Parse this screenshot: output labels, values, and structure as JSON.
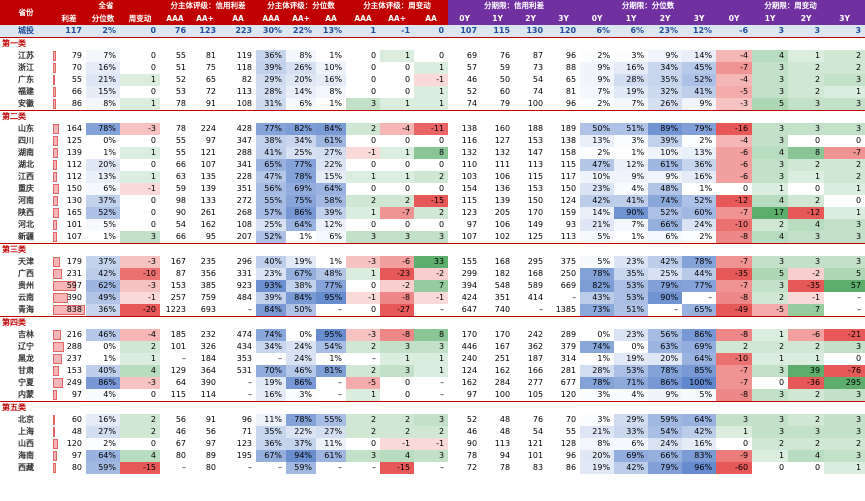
{
  "header": {
    "top": [
      "省份",
      "全省",
      "分主体评级：信用利差",
      "分主体评级：分位数",
      "分主体评级：周变动",
      "分期限：信用利差",
      "分期限：分位数",
      "分期限：周变动"
    ],
    "sub": [
      "利差",
      "分位数",
      "周变动",
      "AAA",
      "AA+",
      "AA",
      "AAA",
      "AA+",
      "AA",
      "AAA",
      "AA+",
      "AA",
      "0Y",
      "1Y",
      "2Y",
      "3Y",
      "0Y",
      "1Y",
      "2Y",
      "3Y",
      "0Y",
      "1Y",
      "2Y",
      "3Y"
    ]
  },
  "total": {
    "province": "城投",
    "cells": [
      "117",
      "2%",
      "0",
      "76",
      "123",
      "223",
      "30%",
      "22%",
      "13%",
      "1",
      "-1",
      "0",
      "107",
      "115",
      "130",
      "120",
      "6%",
      "6%",
      "23%",
      "12%",
      "-6",
      "3",
      "3",
      "3"
    ]
  },
  "groups": [
    {
      "title": "第一类",
      "rows": [
        {
          "province": "江苏",
          "cells": [
            "79",
            "7%",
            "0",
            "55",
            "81",
            "119",
            "36%",
            "8%",
            "1%",
            "0",
            "1",
            "0",
            "69",
            "76",
            "87",
            "96",
            "2%",
            "3%",
            "9%",
            "14%",
            "-4",
            "4",
            "1",
            "2"
          ]
        },
        {
          "province": "浙江",
          "cells": [
            "70",
            "16%",
            "0",
            "51",
            "75",
            "118",
            "39%",
            "26%",
            "10%",
            "0",
            "0",
            "1",
            "57",
            "59",
            "73",
            "88",
            "9%",
            "16%",
            "34%",
            "45%",
            "-7",
            "3",
            "2",
            "2"
          ]
        },
        {
          "province": "广东",
          "cells": [
            "55",
            "21%",
            "1",
            "52",
            "65",
            "82",
            "29%",
            "20%",
            "16%",
            "0",
            "0",
            "-1",
            "46",
            "50",
            "54",
            "65",
            "9%",
            "28%",
            "35%",
            "52%",
            "-4",
            "3",
            "2",
            "3"
          ]
        },
        {
          "province": "福建",
          "cells": [
            "66",
            "15%",
            "0",
            "53",
            "72",
            "113",
            "28%",
            "14%",
            "8%",
            "0",
            "0",
            "1",
            "52",
            "60",
            "74",
            "81",
            "7%",
            "19%",
            "32%",
            "41%",
            "-5",
            "3",
            "2",
            "1"
          ]
        },
        {
          "province": "安徽",
          "cells": [
            "86",
            "8%",
            "1",
            "78",
            "91",
            "108",
            "31%",
            "6%",
            "1%",
            "3",
            "1",
            "1",
            "74",
            "79",
            "100",
            "96",
            "2%",
            "7%",
            "26%",
            "9%",
            "-3",
            "5",
            "3",
            "3"
          ]
        }
      ]
    },
    {
      "title": "第二类",
      "rows": [
        {
          "province": "山东",
          "cells": [
            "164",
            "78%",
            "-3",
            "78",
            "224",
            "428",
            "77%",
            "82%",
            "84%",
            "2",
            "-4",
            "-11",
            "138",
            "160",
            "188",
            "189",
            "50%",
            "51%",
            "89%",
            "79%",
            "-16",
            "3",
            "3",
            "3"
          ]
        },
        {
          "province": "四川",
          "cells": [
            "125",
            "0%",
            "0",
            "55",
            "97",
            "347",
            "38%",
            "34%",
            "61%",
            "0",
            "0",
            "0",
            "116",
            "127",
            "153",
            "138",
            "13%",
            "3%",
            "39%",
            "2%",
            "-4",
            "3",
            "0",
            "0"
          ]
        },
        {
          "province": "湖南",
          "cells": [
            "139",
            "1%",
            "1",
            "55",
            "121",
            "288",
            "41%",
            "25%",
            "27%",
            "-1",
            "1",
            "8",
            "132",
            "132",
            "147",
            "158",
            "2%",
            "1%",
            "10%",
            "13%",
            "-6",
            "4",
            "8",
            "-7"
          ]
        },
        {
          "province": "湖北",
          "cells": [
            "112",
            "20%",
            "0",
            "66",
            "107",
            "341",
            "65%",
            "77%",
            "22%",
            "0",
            "0",
            "0",
            "110",
            "111",
            "113",
            "115",
            "47%",
            "12%",
            "61%",
            "36%",
            "-6",
            "3",
            "2",
            "2"
          ]
        },
        {
          "province": "江西",
          "cells": [
            "112",
            "13%",
            "1",
            "63",
            "135",
            "228",
            "47%",
            "78%",
            "15%",
            "1",
            "1",
            "2",
            "103",
            "106",
            "115",
            "117",
            "10%",
            "9%",
            "9%",
            "16%",
            "-6",
            "3",
            "1",
            "2"
          ]
        },
        {
          "province": "重庆",
          "cells": [
            "150",
            "6%",
            "-1",
            "59",
            "139",
            "351",
            "56%",
            "69%",
            "64%",
            "0",
            "0",
            "0",
            "154",
            "136",
            "153",
            "150",
            "23%",
            "4%",
            "48%",
            "1%",
            "0",
            "1",
            "0",
            "1"
          ]
        },
        {
          "province": "河南",
          "cells": [
            "130",
            "37%",
            "0",
            "98",
            "133",
            "272",
            "55%",
            "75%",
            "58%",
            "2",
            "2",
            "-15",
            "115",
            "139",
            "150",
            "124",
            "42%",
            "41%",
            "74%",
            "52%",
            "-12",
            "4",
            "2",
            "0"
          ]
        },
        {
          "province": "陕西",
          "cells": [
            "165",
            "52%",
            "0",
            "90",
            "261",
            "268",
            "57%",
            "86%",
            "39%",
            "1",
            "-7",
            "2",
            "123",
            "205",
            "170",
            "159",
            "14%",
            "90%",
            "52%",
            "60%",
            "-7",
            "17",
            "-12",
            "1"
          ]
        },
        {
          "province": "河北",
          "cells": [
            "101",
            "5%",
            "0",
            "54",
            "162",
            "108",
            "25%",
            "64%",
            "12%",
            "0",
            "0",
            "0",
            "97",
            "106",
            "149",
            "93",
            "21%",
            "7%",
            "66%",
            "24%",
            "-10",
            "2",
            "4",
            "3"
          ]
        },
        {
          "province": "新疆",
          "cells": [
            "107",
            "1%",
            "3",
            "66",
            "95",
            "207",
            "52%",
            "1%",
            "6%",
            "3",
            "3",
            "3",
            "107",
            "102",
            "125",
            "113",
            "5%",
            "1%",
            "6%",
            "2%",
            "-8",
            "4",
            "3",
            "3"
          ]
        }
      ]
    },
    {
      "title": "第三类",
      "rows": [
        {
          "province": "天津",
          "cells": [
            "179",
            "37%",
            "-3",
            "167",
            "235",
            "296",
            "40%",
            "19%",
            "1%",
            "-3",
            "-6",
            "33",
            "155",
            "168",
            "295",
            "375",
            "5%",
            "23%",
            "42%",
            "78%",
            "-7",
            "3",
            "3",
            "3"
          ]
        },
        {
          "province": "广西",
          "cells": [
            "231",
            "42%",
            "-10",
            "87",
            "356",
            "331",
            "23%",
            "67%",
            "48%",
            "1",
            "-23",
            "-2",
            "299",
            "182",
            "168",
            "250",
            "78%",
            "35%",
            "25%",
            "44%",
            "-35",
            "5",
            "-2",
            "5"
          ]
        },
        {
          "province": "贵州",
          "cells": [
            "597",
            "62%",
            "-3",
            "153",
            "385",
            "923",
            "93%",
            "38%",
            "77%",
            "0",
            "-2",
            "7",
            "394",
            "548",
            "589",
            "669",
            "82%",
            "53%",
            "79%",
            "77%",
            "-7",
            "3",
            "-35",
            "57"
          ]
        },
        {
          "province": "云南",
          "cells": [
            "390",
            "49%",
            "-1",
            "257",
            "759",
            "484",
            "39%",
            "84%",
            "95%",
            "-1",
            "-8",
            "-1",
            "424",
            "351",
            "414",
            "–",
            "43%",
            "53%",
            "90%",
            "–",
            "-8",
            "2",
            "-1",
            "–"
          ]
        },
        {
          "province": "青海",
          "cells": [
            "838",
            "36%",
            "-20",
            "1223",
            "693",
            "–",
            "84%",
            "50%",
            "–",
            "0",
            "-27",
            "–",
            "647",
            "740",
            "–",
            "1385",
            "73%",
            "51%",
            "–",
            "65%",
            "-49",
            "-5",
            "7",
            "–"
          ]
        }
      ]
    },
    {
      "title": "第四类",
      "rows": [
        {
          "province": "吉林",
          "cells": [
            "216",
            "46%",
            "-4",
            "185",
            "232",
            "474",
            "74%",
            "0%",
            "95%",
            "-3",
            "-8",
            "8",
            "170",
            "170",
            "242",
            "289",
            "0%",
            "23%",
            "56%",
            "86%",
            "-8",
            "1",
            "-6",
            "-21"
          ]
        },
        {
          "province": "辽宁",
          "cells": [
            "288",
            "0%",
            "2",
            "101",
            "326",
            "434",
            "34%",
            "24%",
            "54%",
            "2",
            "3",
            "3",
            "446",
            "167",
            "362",
            "379",
            "74%",
            "0%",
            "63%",
            "69%",
            "2",
            "2",
            "2",
            "3"
          ]
        },
        {
          "province": "黑龙",
          "cells": [
            "237",
            "1%",
            "1",
            "–",
            "184",
            "353",
            "–",
            "24%",
            "1%",
            "–",
            "1",
            "1",
            "240",
            "251",
            "187",
            "314",
            "1%",
            "19%",
            "20%",
            "64%",
            "-10",
            "1",
            "1",
            "0"
          ]
        },
        {
          "province": "甘肃",
          "cells": [
            "153",
            "40%",
            "4",
            "129",
            "364",
            "531",
            "70%",
            "46%",
            "81%",
            "2",
            "3",
            "1",
            "124",
            "162",
            "166",
            "281",
            "28%",
            "53%",
            "78%",
            "85%",
            "-7",
            "3",
            "39",
            "-76"
          ]
        },
        {
          "province": "宁夏",
          "cells": [
            "249",
            "86%",
            "-3",
            "64",
            "390",
            "–",
            "19%",
            "86%",
            "–",
            "-5",
            "0",
            "–",
            "162",
            "284",
            "277",
            "677",
            "78%",
            "71%",
            "86%",
            "100%",
            "-7",
            "0",
            "-36",
            "295"
          ]
        },
        {
          "province": "内蒙",
          "cells": [
            "97",
            "4%",
            "0",
            "115",
            "114",
            "–",
            "16%",
            "3%",
            "–",
            "1",
            "0",
            "–",
            "97",
            "100",
            "105",
            "120",
            "3%",
            "4%",
            "9%",
            "5%",
            "-8",
            "3",
            "2",
            "3"
          ]
        }
      ]
    },
    {
      "title": "第五类",
      "rows": [
        {
          "province": "北京",
          "cells": [
            "60",
            "16%",
            "2",
            "56",
            "91",
            "96",
            "11%",
            "78%",
            "55%",
            "2",
            "2",
            "3",
            "52",
            "48",
            "76",
            "70",
            "3%",
            "29%",
            "59%",
            "64%",
            "3",
            "3",
            "2",
            "3"
          ]
        },
        {
          "province": "上海",
          "cells": [
            "48",
            "27%",
            "2",
            "46",
            "56",
            "71",
            "35%",
            "22%",
            "27%",
            "2",
            "2",
            "2",
            "46",
            "48",
            "54",
            "55",
            "21%",
            "33%",
            "54%",
            "42%",
            "1",
            "3",
            "3",
            "3"
          ]
        },
        {
          "province": "山西",
          "cells": [
            "120",
            "2%",
            "0",
            "67",
            "97",
            "123",
            "36%",
            "37%",
            "11%",
            "0",
            "-1",
            "-1",
            "90",
            "113",
            "121",
            "128",
            "8%",
            "6%",
            "24%",
            "16%",
            "0",
            "2",
            "2",
            "2"
          ]
        },
        {
          "province": "海南",
          "cells": [
            "97",
            "64%",
            "4",
            "80",
            "89",
            "195",
            "67%",
            "94%",
            "61%",
            "3",
            "4",
            "3",
            "78",
            "94",
            "101",
            "96",
            "20%",
            "69%",
            "66%",
            "83%",
            "-9",
            "1",
            "4",
            "3"
          ]
        },
        {
          "province": "西藏",
          "cells": [
            "80",
            "59%",
            "-15",
            "–",
            "80",
            "–",
            "–",
            "59%",
            "–",
            "–",
            "-15",
            "–",
            "72",
            "78",
            "83",
            "86",
            "19%",
            "42%",
            "79%",
            "96%",
            "-60",
            "0",
            "0",
            "1"
          ]
        }
      ]
    }
  ]
}
